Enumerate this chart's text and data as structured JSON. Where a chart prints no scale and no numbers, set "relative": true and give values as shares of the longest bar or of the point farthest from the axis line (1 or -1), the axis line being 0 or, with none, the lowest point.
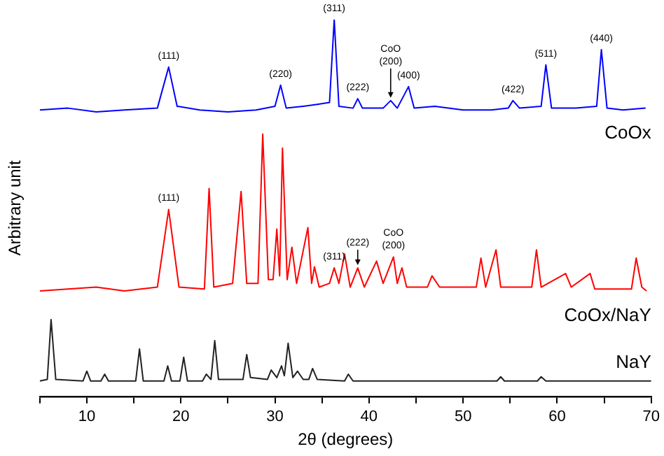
{
  "chart_data": {
    "type": "line",
    "relative": true,
    "xlabel": "2θ (degrees)",
    "ylabel": "Arbitrary unit",
    "xlim": [
      5,
      70
    ],
    "xticks": [
      {
        "value": 5,
        "label": null
      },
      10,
      {
        "value": 15,
        "label": null
      },
      20,
      {
        "value": 25,
        "label": null
      },
      30,
      {
        "value": 35,
        "label": null
      },
      40,
      {
        "value": 45,
        "label": null
      },
      50,
      {
        "value": 55,
        "label": null
      },
      60,
      {
        "value": 65,
        "label": null
      },
      70
    ],
    "grid": false,
    "legend": false,
    "marker": "none",
    "line_style": "solid",
    "series": [
      {
        "name": "CoOx",
        "color": "#0000ff",
        "x": [
          5,
          8,
          11,
          14,
          17.5,
          18.7,
          19.6,
          22,
          25,
          28,
          30.0,
          30.6,
          31.2,
          33,
          34.5,
          35.8,
          36.3,
          36.8,
          38.3,
          38.8,
          39.3,
          41.5,
          42.3,
          43.0,
          44.2,
          44.8,
          47,
          50,
          53,
          54.8,
          55.3,
          56,
          58.3,
          58.8,
          59.4,
          62,
          64.2,
          64.7,
          65.3,
          67,
          69.4
        ],
        "values": [
          0.76,
          0.765,
          0.755,
          0.76,
          0.765,
          0.874,
          0.77,
          0.76,
          0.755,
          0.76,
          0.77,
          0.826,
          0.765,
          0.77,
          0.775,
          0.78,
          1.0,
          0.77,
          0.765,
          0.79,
          0.765,
          0.765,
          0.785,
          0.765,
          0.822,
          0.765,
          0.77,
          0.76,
          0.76,
          0.765,
          0.785,
          0.765,
          0.77,
          0.88,
          0.765,
          0.765,
          0.77,
          0.92,
          0.765,
          0.76,
          0.765
        ]
      },
      {
        "name": "CoOx/NaY",
        "color": "#ff0000",
        "x": [
          5,
          8,
          11,
          14,
          17.5,
          18.7,
          19.8,
          22.5,
          23.0,
          23.5,
          25.5,
          26.4,
          27,
          28.2,
          28.7,
          29.3,
          29.8,
          30.2,
          30.5,
          30.8,
          31.3,
          31.8,
          32.3,
          33.5,
          33.9,
          34.2,
          34.7,
          35.8,
          36.3,
          36.8,
          37.4,
          38.0,
          38.8,
          39.5,
          40.8,
          41.5,
          42.6,
          43.0,
          43.5,
          44,
          46.2,
          46.7,
          47.5,
          51.4,
          51.9,
          52.4,
          53.5,
          54,
          57.3,
          57.8,
          58.3,
          60.9,
          61.5,
          63.5,
          64,
          67.9,
          68.4,
          69,
          69.5
        ],
        "values": [
          0.28,
          0.285,
          0.29,
          0.28,
          0.29,
          0.496,
          0.29,
          0.285,
          0.552,
          0.29,
          0.3,
          0.544,
          0.3,
          0.3,
          0.696,
          0.31,
          0.31,
          0.444,
          0.32,
          0.659,
          0.31,
          0.396,
          0.3,
          0.448,
          0.3,
          0.344,
          0.29,
          0.3,
          0.341,
          0.3,
          0.378,
          0.29,
          0.341,
          0.29,
          0.359,
          0.3,
          0.37,
          0.3,
          0.341,
          0.29,
          0.29,
          0.32,
          0.29,
          0.29,
          0.367,
          0.29,
          0.389,
          0.29,
          0.29,
          0.389,
          0.29,
          0.326,
          0.29,
          0.326,
          0.285,
          0.285,
          0.367,
          0.29,
          0.28
        ]
      },
      {
        "name": "NaY",
        "color": "#222222",
        "x": [
          5,
          5.8,
          6.2,
          6.7,
          9.6,
          10.0,
          10.4,
          11.5,
          11.9,
          12.3,
          15.2,
          15.6,
          16.0,
          18.2,
          18.6,
          19.0,
          19.9,
          20.3,
          20.7,
          22.3,
          22.7,
          23.2,
          23.6,
          24.0,
          26.6,
          27.0,
          27.4,
          29.2,
          29.6,
          30.2,
          30.7,
          31.0,
          31.4,
          31.9,
          32.4,
          33.0,
          33.6,
          34.0,
          34.5,
          37.4,
          37.8,
          38.3,
          53.6,
          54.0,
          54.4,
          57.9,
          58.3,
          58.8,
          70
        ],
        "values": [
          0.041,
          0.045,
          0.204,
          0.045,
          0.041,
          0.067,
          0.041,
          0.041,
          0.059,
          0.041,
          0.041,
          0.126,
          0.041,
          0.041,
          0.081,
          0.041,
          0.041,
          0.104,
          0.041,
          0.041,
          0.059,
          0.045,
          0.148,
          0.045,
          0.045,
          0.111,
          0.05,
          0.045,
          0.07,
          0.05,
          0.081,
          0.055,
          0.141,
          0.05,
          0.067,
          0.045,
          0.045,
          0.074,
          0.045,
          0.041,
          0.059,
          0.041,
          0.041,
          0.052,
          0.041,
          0.041,
          0.052,
          0.041,
          0.041
        ]
      }
    ],
    "annotations": [
      {
        "text": "(111)",
        "x": 18.7,
        "y": 0.874
      },
      {
        "text": "(220)",
        "x": 30.6,
        "y": 0.826
      },
      {
        "text": "(311)",
        "x": 36.3,
        "y": 1.0
      },
      {
        "text": "(222)",
        "x": 38.8,
        "y": 0.79
      },
      {
        "text": "CoO\n(200)",
        "x": 42.3,
        "y": 0.785
      },
      {
        "text": "(400)",
        "x": 44.2,
        "y": 0.822
      },
      {
        "text": "(422)",
        "x": 55.3,
        "y": 0.785
      },
      {
        "text": "(511)",
        "x": 58.8,
        "y": 0.88
      },
      {
        "text": "(440)",
        "x": 64.7,
        "y": 0.92
      },
      {
        "text": "(111)",
        "x": 18.7,
        "y": 0.496
      },
      {
        "text": "(311)",
        "x": 36.3,
        "y": 0.341
      },
      {
        "text": "(222)",
        "x": 38.8,
        "y": 0.341
      },
      {
        "text": "CoO\n(200)",
        "x": 42.6,
        "y": 0.37
      }
    ]
  }
}
